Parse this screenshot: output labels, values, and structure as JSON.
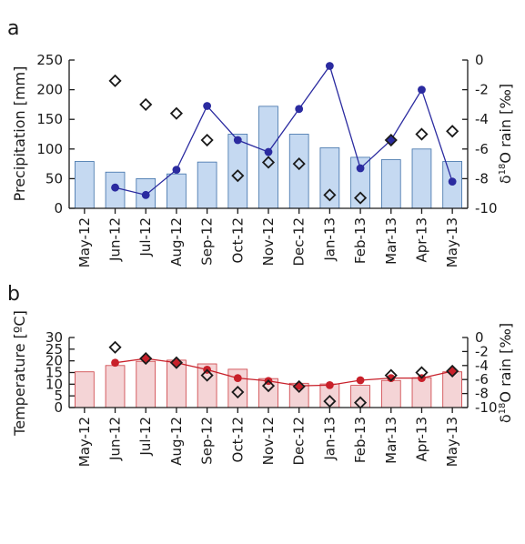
{
  "chart_data": [
    {
      "panel_label": "a",
      "type": "bar",
      "categories": [
        "May-12",
        "Jun-12",
        "Jul-12",
        "Aug-12",
        "Sep-12",
        "Oct-12",
        "Nov-12",
        "Dec-12",
        "Jan-13",
        "Feb-13",
        "Mar-13",
        "Apr-13",
        "May-13"
      ],
      "ylabel": "Precipitation [mm]",
      "ylim": [
        0,
        250
      ],
      "yticks": [
        0,
        50,
        100,
        150,
        200,
        250
      ],
      "y2label_main": "δ",
      "y2label_sup": "18",
      "y2label_rest": "O rain [‰]",
      "y2lim": [
        -10,
        0
      ],
      "y2ticks": [
        0,
        -2,
        -4,
        -6,
        -8,
        -10
      ],
      "series": [
        {
          "kind": "bar",
          "axis": "left",
          "color": "#c5d9f1",
          "stroke": "#3d6fa8",
          "values": [
            79,
            61,
            50,
            58,
            78,
            125,
            172,
            125,
            102,
            86,
            82,
            100,
            79
          ]
        },
        {
          "kind": "line",
          "axis": "right",
          "color": "#2b2ba0",
          "values": [
            null,
            -8.6,
            -9.1,
            -7.4,
            -3.1,
            -5.4,
            -6.2,
            -3.3,
            -0.4,
            -7.3,
            -5.4,
            -2.0,
            -8.2
          ]
        },
        {
          "kind": "diamond",
          "axis": "right",
          "color": "#1a1a1a",
          "values": [
            null,
            -1.4,
            -3.0,
            -3.6,
            -5.4,
            -7.8,
            -6.9,
            -7.0,
            -9.1,
            -9.3,
            -5.4,
            -5.0,
            -4.8
          ]
        }
      ],
      "grid": false
    },
    {
      "panel_label": "b",
      "type": "bar",
      "categories": [
        "May-12",
        "Jun-12",
        "Jul-12",
        "Aug-12",
        "Sep-12",
        "Oct-12",
        "Nov-12",
        "Dec-12",
        "Jan-13",
        "Feb-13",
        "Mar-13",
        "Apr-13",
        "May-13"
      ],
      "ylabel": "Temperature [ºC]",
      "ylim": [
        0,
        30
      ],
      "yticks": [
        0,
        5,
        10,
        15,
        20,
        25,
        30
      ],
      "y2label_main": "δ",
      "y2label_sup": "18",
      "y2label_rest": "O rain [‰]",
      "y2lim": [
        -10,
        0
      ],
      "y2ticks": [
        0,
        -2,
        -4,
        -6,
        -8,
        -10
      ],
      "series": [
        {
          "kind": "bar",
          "axis": "left",
          "color": "#f4d4d6",
          "stroke": "#cc3b40",
          "values": [
            15.3,
            18.0,
            19.8,
            20.3,
            18.7,
            16.4,
            12.4,
            10.4,
            10.1,
            9.5,
            11.6,
            12.8,
            15.3
          ]
        },
        {
          "kind": "line",
          "axis": "right",
          "color": "#c8202a",
          "values": [
            null,
            -3.6,
            -3.0,
            -3.6,
            -4.6,
            -5.8,
            -6.2,
            -6.9,
            -6.8,
            -6.1,
            -5.8,
            -5.8,
            -4.8
          ]
        },
        {
          "kind": "diamond",
          "axis": "right",
          "color": "#1a1a1a",
          "values": [
            null,
            -1.4,
            -3.0,
            -3.6,
            -5.4,
            -7.8,
            -6.9,
            -7.0,
            -9.1,
            -9.3,
            -5.4,
            -5.0,
            -4.8
          ]
        }
      ],
      "grid": false
    }
  ]
}
